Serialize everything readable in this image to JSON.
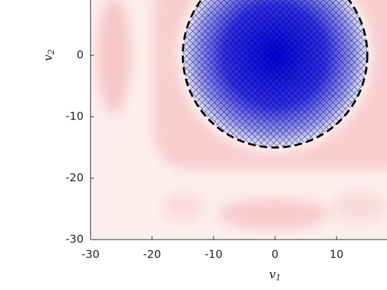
{
  "chart_data": {
    "type": "heatmap",
    "x_label": "v",
    "x_label_sub": "1",
    "y_label": "v",
    "y_label_sub": "2",
    "xlim": [
      -30,
      18.2
    ],
    "ylim": [
      -30,
      9
    ],
    "xticks": [
      -30,
      -20,
      -10,
      0,
      10
    ],
    "yticks": [
      -30,
      -20,
      -10,
      0
    ],
    "contour": {
      "center": [
        0,
        0
      ],
      "radius": 15,
      "color": "#000000"
    }
  }
}
